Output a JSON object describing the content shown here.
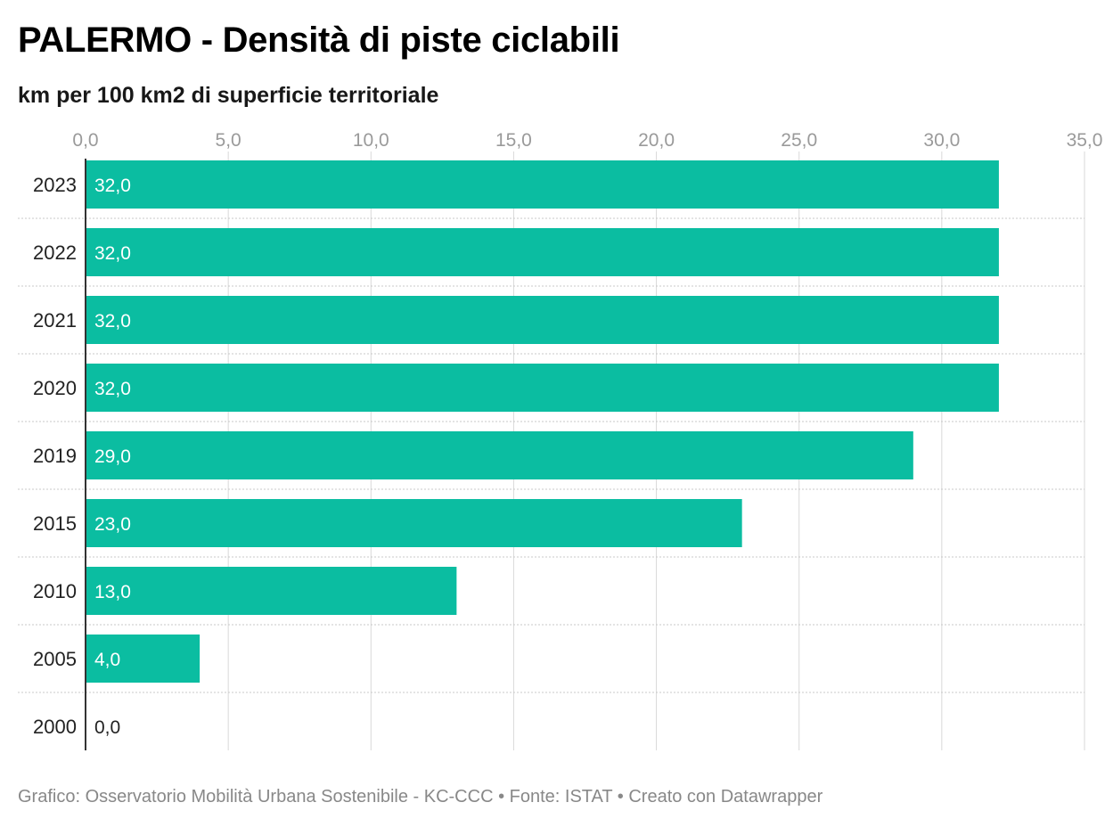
{
  "title": "PALERMO - Densità di piste ciclabili",
  "subtitle": "km per 100 km2 di superficie territoriale",
  "footer": "Grafico: Osservatorio Mobilità Urbana Sostenibile - KC-CCC • Fonte: ISTAT • Creato con Datawrapper",
  "colors": {
    "bar": "#0bbda1",
    "label_inside": "#ffffff",
    "label_outside": "#222222",
    "axis_line": "#333333",
    "gridline": "#d9d9d9",
    "row_divider": "#c8c8c8"
  },
  "chart_data": {
    "type": "bar",
    "orientation": "horizontal",
    "categories": [
      "2023",
      "2022",
      "2021",
      "2020",
      "2019",
      "2015",
      "2010",
      "2005",
      "2000"
    ],
    "values": [
      32.0,
      32.0,
      32.0,
      32.0,
      29.0,
      23.0,
      13.0,
      4.0,
      0.0
    ],
    "value_labels": [
      "32,0",
      "32,0",
      "32,0",
      "32,0",
      "29,0",
      "23,0",
      "13,0",
      "4,0",
      "0,0"
    ],
    "xlim": [
      0,
      35
    ],
    "ticks": [
      0,
      5,
      10,
      15,
      20,
      25,
      30,
      35
    ],
    "tick_labels": [
      "0,0",
      "5,0",
      "10,0",
      "15,0",
      "20,0",
      "25,0",
      "30,0",
      "35,0"
    ],
    "axis_position": "top",
    "grid": true
  }
}
